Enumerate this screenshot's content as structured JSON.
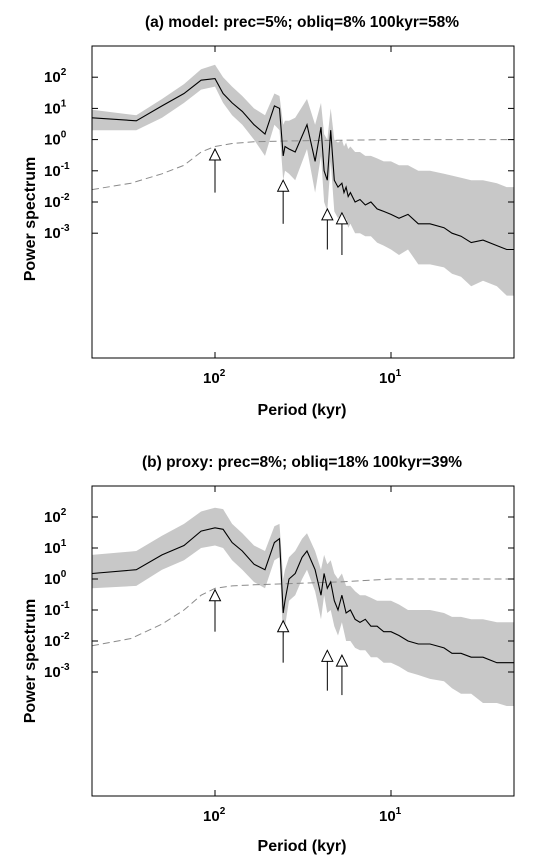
{
  "chart_data": [
    {
      "type": "line",
      "title": "(a) model: prec=5%; obliq=8% 100kyr=58%",
      "xlabel": "Period (kyr)",
      "ylabel": "Power spectrum",
      "x_scale": "log (reversed, period decreasing to the right)",
      "xlim": [
        500,
        2
      ],
      "ylim": [
        1e-07,
        1000
      ],
      "x_ticks": [
        {
          "base": "10",
          "exp": "2",
          "value": 100
        },
        {
          "base": "10",
          "exp": "1",
          "value": 10
        }
      ],
      "y_ticks": [
        {
          "base": "10",
          "exp": "2",
          "value": 100
        },
        {
          "base": "10",
          "exp": "1",
          "value": 10
        },
        {
          "base": "10",
          "exp": "0",
          "value": 1
        },
        {
          "base": "10",
          "exp": "-1",
          "value": 0.1
        },
        {
          "base": "10",
          "exp": "-2",
          "value": 0.01
        },
        {
          "base": "10",
          "exp": "-3",
          "value": 0.001
        }
      ],
      "spectrum": {
        "x": [
          500,
          280,
          200,
          150,
          120,
          100,
          90,
          80,
          70,
          60,
          52,
          46,
          43,
          41,
          40,
          38,
          35,
          30,
          27,
          25,
          24,
          23,
          22,
          21,
          20,
          19,
          18.5,
          18,
          17.5,
          17,
          16,
          15,
          14,
          13,
          12,
          11,
          10,
          9,
          8,
          7,
          6,
          5,
          4.5,
          4,
          3.5,
          3,
          2.5,
          2.2,
          2
        ],
        "y": [
          5,
          4,
          12,
          30,
          80,
          90,
          30,
          15,
          8,
          3,
          1.5,
          12,
          10,
          0.3,
          0.6,
          0.5,
          0.4,
          3,
          0.2,
          2.5,
          0.1,
          0.05,
          2,
          0.05,
          0.03,
          0.04,
          0.02,
          0.03,
          0.015,
          0.02,
          0.01,
          0.012,
          0.008,
          0.01,
          0.006,
          0.005,
          0.004,
          0.003,
          0.004,
          0.002,
          0.002,
          0.0015,
          0.001,
          0.0008,
          0.0005,
          0.0006,
          0.0004,
          0.0003,
          0.0003
        ]
      },
      "confidence_band": {
        "upper": [
          9,
          6,
          20,
          60,
          180,
          250,
          100,
          50,
          25,
          10,
          6,
          30,
          25,
          3,
          4,
          4,
          5,
          20,
          3,
          15,
          1.5,
          1,
          10,
          1,
          0.8,
          1,
          0.6,
          0.8,
          0.5,
          0.6,
          0.4,
          0.4,
          0.3,
          0.3,
          0.25,
          0.2,
          0.2,
          0.15,
          0.15,
          0.1,
          0.1,
          0.08,
          0.07,
          0.06,
          0.05,
          0.05,
          0.04,
          0.03,
          0.03
        ],
        "lower": [
          2,
          2,
          5,
          15,
          40,
          50,
          15,
          6,
          3,
          1,
          0.3,
          3,
          2,
          0.05,
          0.1,
          0.08,
          0.05,
          0.5,
          0.02,
          0.3,
          0.01,
          0.005,
          0.2,
          0.005,
          0.003,
          0.004,
          0.002,
          0.003,
          0.0015,
          0.002,
          0.001,
          0.001,
          0.0008,
          0.0008,
          0.0005,
          0.0004,
          0.0003,
          0.0002,
          0.0003,
          0.0001,
          0.0001,
          8e-05,
          5e-05,
          4e-05,
          2e-05,
          3e-05,
          2e-05,
          1e-05,
          1e-05
        ]
      },
      "dashed_curve": {
        "x": [
          500,
          300,
          200,
          150,
          120,
          100,
          80,
          60,
          40,
          20,
          10,
          5,
          2
        ],
        "y": [
          0.025,
          0.04,
          0.08,
          0.15,
          0.4,
          0.6,
          0.75,
          0.85,
          0.9,
          0.95,
          1,
          1,
          1
        ]
      },
      "arrows": [
        {
          "period": 100,
          "tip": 0.5,
          "tail": 0.02
        },
        {
          "period": 41,
          "tip": 0.05,
          "tail": 0.002
        },
        {
          "period": 23,
          "tip": 0.006,
          "tail": 0.0003
        },
        {
          "period": 19,
          "tip": 0.0045,
          "tail": 0.0002
        }
      ]
    },
    {
      "type": "line",
      "title": "(b) proxy: prec=8%; obliq=18% 100kyr=39%",
      "xlabel": "Period (kyr)",
      "ylabel": "Power spectrum",
      "x_scale": "log (reversed, period decreasing to the right)",
      "xlim": [
        500,
        2
      ],
      "ylim": [
        1e-07,
        1000
      ],
      "x_ticks": [
        {
          "base": "10",
          "exp": "2",
          "value": 100
        },
        {
          "base": "10",
          "exp": "1",
          "value": 10
        }
      ],
      "y_ticks": [
        {
          "base": "10",
          "exp": "2",
          "value": 100
        },
        {
          "base": "10",
          "exp": "1",
          "value": 10
        },
        {
          "base": "10",
          "exp": "0",
          "value": 1
        },
        {
          "base": "10",
          "exp": "-1",
          "value": 0.1
        },
        {
          "base": "10",
          "exp": "-2",
          "value": 0.01
        },
        {
          "base": "10",
          "exp": "-3",
          "value": 0.001
        }
      ],
      "spectrum": {
        "x": [
          500,
          280,
          200,
          150,
          120,
          100,
          90,
          80,
          70,
          60,
          52,
          46,
          43,
          41,
          40,
          38,
          35,
          32,
          30,
          27,
          25,
          24,
          23,
          22,
          21,
          20,
          19,
          18,
          17,
          16,
          15,
          14,
          13,
          12,
          11,
          10,
          9,
          8,
          7,
          6,
          5,
          4.5,
          4,
          3.5,
          3,
          2.5,
          2.2,
          2
        ],
        "y": [
          1.5,
          2,
          6,
          12,
          35,
          45,
          40,
          15,
          8,
          3,
          2,
          15,
          20,
          0.08,
          0.2,
          1,
          1.5,
          5,
          8,
          2,
          0.3,
          1.5,
          0.5,
          0.8,
          0.2,
          0.1,
          0.3,
          0.08,
          0.1,
          0.05,
          0.04,
          0.05,
          0.03,
          0.03,
          0.02,
          0.02,
          0.015,
          0.01,
          0.008,
          0.008,
          0.006,
          0.004,
          0.004,
          0.003,
          0.003,
          0.002,
          0.002,
          0.002
        ]
      },
      "confidence_band": {
        "upper": [
          6,
          8,
          25,
          60,
          150,
          200,
          180,
          60,
          30,
          12,
          8,
          50,
          60,
          1,
          2,
          5,
          8,
          20,
          30,
          8,
          2,
          6,
          3,
          4,
          1.5,
          1,
          1.5,
          0.6,
          0.6,
          0.4,
          0.3,
          0.3,
          0.25,
          0.2,
          0.2,
          0.2,
          0.15,
          0.1,
          0.1,
          0.1,
          0.08,
          0.06,
          0.06,
          0.05,
          0.05,
          0.04,
          0.04,
          0.04
        ],
        "lower": [
          0.5,
          0.6,
          2,
          4,
          10,
          12,
          10,
          4,
          2,
          0.8,
          0.5,
          4,
          5,
          0.01,
          0.03,
          0.2,
          0.3,
          1,
          2,
          0.4,
          0.05,
          0.3,
          0.08,
          0.1,
          0.03,
          0.015,
          0.04,
          0.01,
          0.01,
          0.006,
          0.005,
          0.005,
          0.003,
          0.003,
          0.002,
          0.002,
          0.0015,
          0.001,
          0.0008,
          0.0006,
          0.0005,
          0.0003,
          0.0002,
          0.0002,
          0.0001,
          0.0001,
          8e-05,
          8e-05
        ]
      },
      "dashed_curve": {
        "x": [
          500,
          300,
          200,
          150,
          120,
          100,
          80,
          60,
          40,
          20,
          10,
          5,
          2
        ],
        "y": [
          0.007,
          0.012,
          0.035,
          0.1,
          0.3,
          0.5,
          0.6,
          0.65,
          0.7,
          0.8,
          1,
          1,
          1
        ]
      },
      "arrows": [
        {
          "period": 100,
          "tip": 0.45,
          "tail": 0.02
        },
        {
          "period": 41,
          "tip": 0.045,
          "tail": 0.002
        },
        {
          "period": 23,
          "tip": 0.005,
          "tail": 0.00025
        },
        {
          "period": 19,
          "tip": 0.0035,
          "tail": 0.00018
        }
      ]
    }
  ]
}
